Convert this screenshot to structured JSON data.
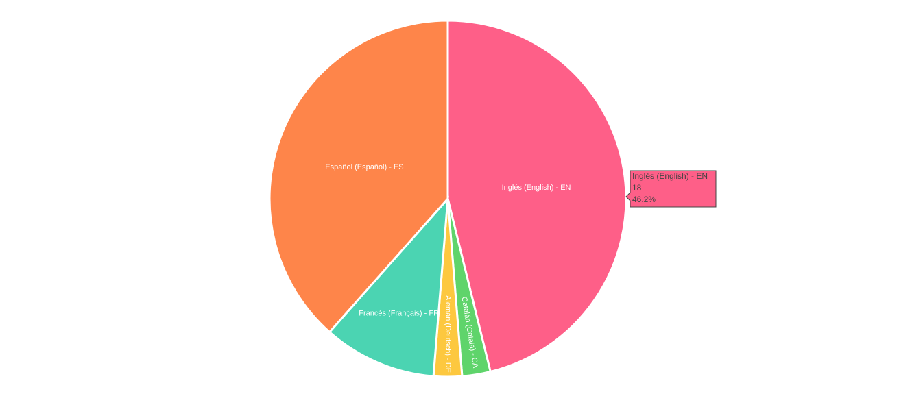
{
  "chart_data": {
    "type": "pie",
    "categories": [
      "Inglés (English) - EN",
      "Catalán (Català) - CA",
      "Alemán (Deutsch) - DE",
      "Francés (Français) - FR",
      "Español (Español) - ES"
    ],
    "values": [
      18,
      1,
      1,
      4,
      15
    ],
    "colors": [
      "#fe5f88",
      "#5fd46b",
      "#fdc83f",
      "#4bd4b2",
      "#fe854a"
    ],
    "tooltip": {
      "label": "Inglés (English) - EN",
      "value": 18,
      "percent": {
        "value": 46.2,
        "label": "46.2%"
      }
    }
  }
}
